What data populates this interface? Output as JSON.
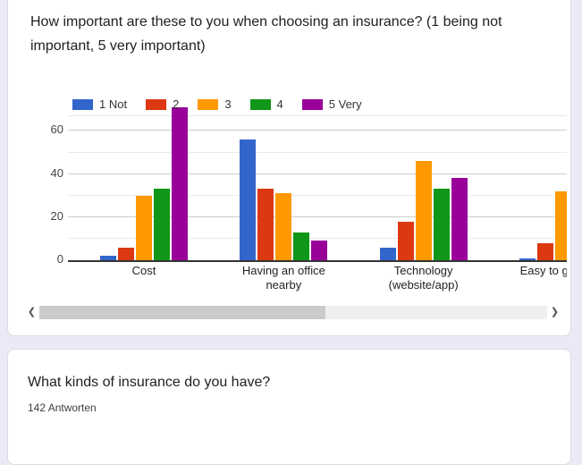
{
  "chart_card": {
    "title": "How important are these to you when choosing an insurance? (1 being not important, 5 very important)"
  },
  "icons": {
    "scroll_left": "❮",
    "scroll_right": "❯"
  },
  "chart_data": {
    "type": "bar",
    "title": "How important are these to you when choosing an insurance? (1 being not important, 5 very important)",
    "categories": [
      "Cost",
      "Having an office nearby",
      "Technology (website/app)",
      "Easy to get payo"
    ],
    "series": [
      {
        "name": "1 Not",
        "color": "#3366CC",
        "values": [
          2,
          56,
          6,
          1
        ]
      },
      {
        "name": "2",
        "color": "#DC3912",
        "values": [
          6,
          33,
          18,
          8
        ]
      },
      {
        "name": "3",
        "color": "#FF9900",
        "values": [
          30,
          31,
          46,
          32
        ]
      },
      {
        "name": "4",
        "color": "#109618",
        "values": [
          33,
          13,
          33,
          null
        ]
      },
      {
        "name": "5 Very",
        "color": "#990099",
        "values": [
          71,
          9,
          38,
          null
        ]
      }
    ],
    "yticks": [
      0,
      20,
      40,
      60
    ],
    "ylim": [
      0,
      66.8
    ],
    "grid": true,
    "legend_position": "top"
  },
  "question_card": {
    "title": "What kinds of insurance do you have?",
    "responses_label": "142 Antworten"
  }
}
